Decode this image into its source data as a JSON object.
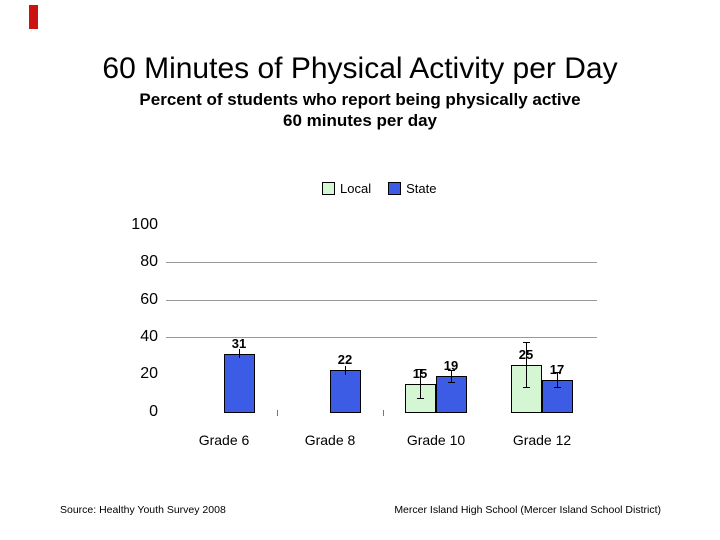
{
  "slide": {
    "title": "60 Minutes of Physical Activity per Day",
    "subtitle_line1": "Percent of students who report being physically active",
    "subtitle_line2": "60 minutes per day",
    "footer_left": "Source: Healthy Youth Survey 2008",
    "footer_right": "Mercer Island High School (Mercer Island School District)"
  },
  "colors": {
    "local_fill": "#d4f6d2",
    "state_fill": "#3c5ce5",
    "bar_border": "#000000",
    "gridline": "#999999",
    "axis_tick": "#777777",
    "marker_red": "#cc1111",
    "text": "#000000"
  },
  "chart_data": {
    "type": "bar",
    "title": "",
    "xlabel": "",
    "ylabel": "",
    "categories": [
      "Grade 6",
      "Grade 8",
      "Grade 10",
      "Grade 12"
    ],
    "series": [
      {
        "name": "Local",
        "color_key": "local_fill",
        "values": [
          null,
          null,
          15,
          25
        ],
        "error": [
          null,
          null,
          8,
          12
        ]
      },
      {
        "name": "State",
        "color_key": "state_fill",
        "values": [
          31,
          22,
          19,
          17
        ],
        "error": [
          2.5,
          2.5,
          3,
          4
        ]
      }
    ],
    "ylim": [
      0,
      100
    ],
    "yticks": [
      0,
      20,
      40,
      60,
      80,
      100
    ],
    "gridline_values": [
      40,
      60,
      80
    ],
    "bar_labels_shown": true,
    "legend_position": "top-center",
    "grid": "horizontal-partial"
  }
}
